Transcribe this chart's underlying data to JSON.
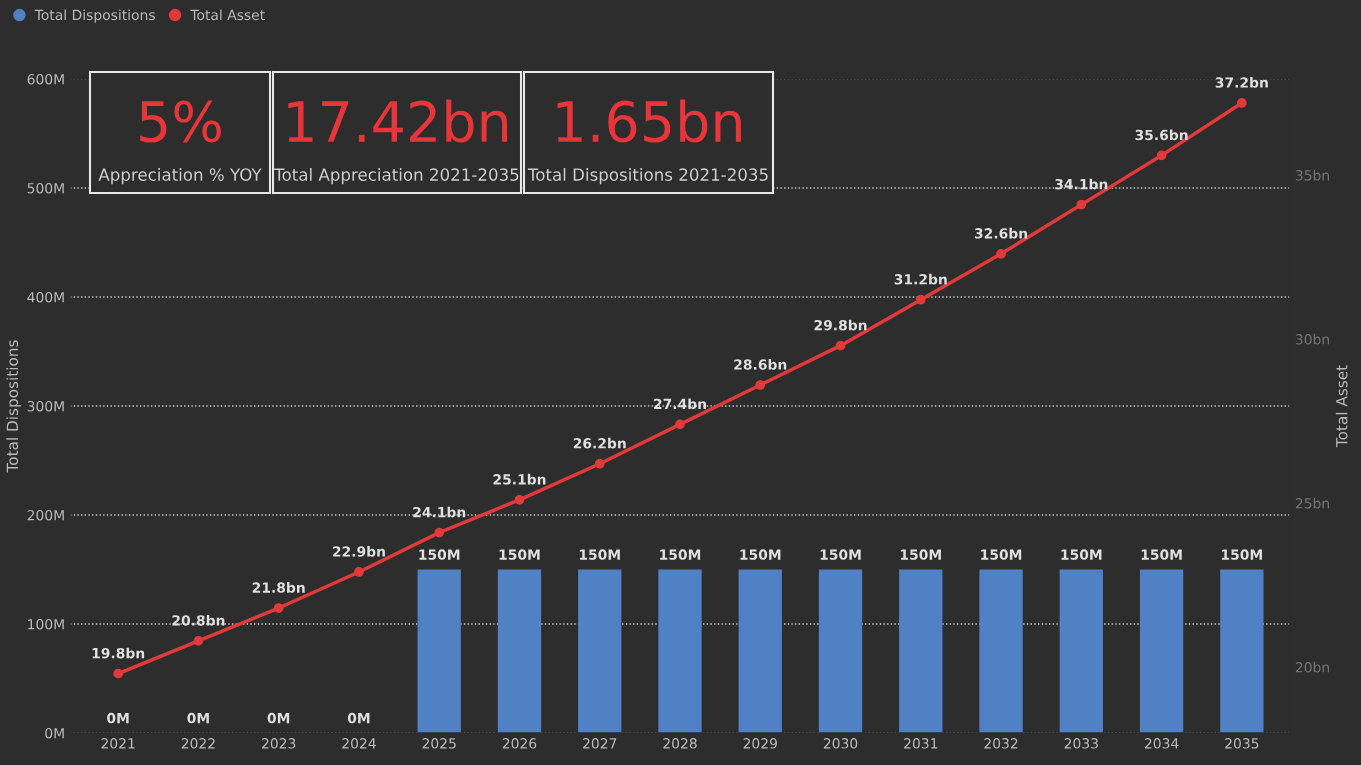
{
  "chart_data": [
    {
      "type": "bar",
      "categories": [
        "2021",
        "2022",
        "2023",
        "2024",
        "2025",
        "2026",
        "2027",
        "2028",
        "2029",
        "2030",
        "2031",
        "2032",
        "2033",
        "2034",
        "2035"
      ],
      "ylabel": "Total Dispositions",
      "y2label": "Total Asset",
      "legend": "top left",
      "grid": "y",
      "marker": "circle",
      "ylim": [
        0,
        600
      ],
      "yticks": [
        {
          "value": 0,
          "label": "0M"
        },
        {
          "value": 100,
          "label": "100M"
        },
        {
          "value": 200,
          "label": "200M"
        },
        {
          "value": 300,
          "label": "300M"
        },
        {
          "value": 400,
          "label": "400M"
        },
        {
          "value": 500,
          "label": "500M"
        },
        {
          "value": 600,
          "label": "600M"
        }
      ],
      "y2lim": [
        17.99,
        37.93
      ],
      "y2ticks": [
        {
          "value": 20,
          "label": "20bn"
        },
        {
          "value": 25,
          "label": "25bn"
        },
        {
          "value": 30,
          "label": "30bn"
        },
        {
          "value": 35,
          "label": "35bn"
        }
      ],
      "series": [
        {
          "name": "Total Dispositions",
          "type": "bar",
          "color": "#4f81c4",
          "values": [
            0,
            0,
            0,
            0,
            150,
            150,
            150,
            150,
            150,
            150,
            150,
            150,
            150,
            150,
            150
          ],
          "value_labels": [
            "0M",
            "0M",
            "0M",
            "0M",
            "150M",
            "150M",
            "150M",
            "150M",
            "150M",
            "150M",
            "150M",
            "150M",
            "150M",
            "150M",
            "150M"
          ]
        },
        {
          "name": "Total Asset",
          "type": "line",
          "axis": "y2",
          "color": "#e23a3a",
          "values": [
            19.8,
            20.8,
            21.8,
            22.9,
            24.1,
            25.1,
            26.2,
            27.4,
            28.6,
            29.8,
            31.2,
            32.6,
            34.1,
            35.6,
            37.2
          ],
          "value_labels": [
            "19.8bn",
            "20.8bn",
            "21.8bn",
            "22.9bn",
            "24.1bn",
            "25.1bn",
            "26.2bn",
            "27.4bn",
            "28.6bn",
            "29.8bn",
            "31.2bn",
            "32.6bn",
            "34.1bn",
            "35.6bn",
            "37.2bn"
          ]
        }
      ]
    },
    {
      "type": "other",
      "annotations": [
        "5%",
        "Appreciation % YOY"
      ]
    },
    {
      "type": "other",
      "annotations": [
        "17.42bn",
        "Total Appreciation 2021-2035"
      ]
    },
    {
      "type": "other",
      "annotations": [
        "1.65bn",
        "Total Dispositions 2021-2035"
      ]
    }
  ]
}
